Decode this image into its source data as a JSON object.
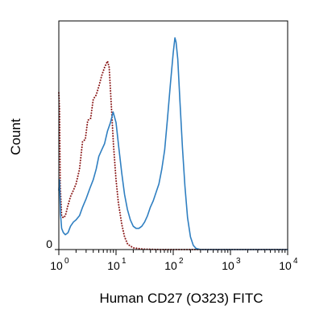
{
  "chart_data": {
    "type": "line",
    "title": "",
    "xlabel": "Human CD27 (O323) FITC",
    "ylabel": "Count",
    "x_scale": "log",
    "xlim": [
      1,
      10000
    ],
    "ylim": [
      0,
      1
    ],
    "grid": false,
    "legend": "none",
    "x_ticks": [
      {
        "value": 1,
        "base": "10",
        "exp": "0"
      },
      {
        "value": 10,
        "base": "10",
        "exp": "1"
      },
      {
        "value": 100,
        "base": "10",
        "exp": "2"
      },
      {
        "value": 1000,
        "base": "10",
        "exp": "3"
      },
      {
        "value": 10000,
        "base": "10",
        "exp": "4"
      }
    ],
    "y_ticks": [
      {
        "value": 0,
        "label": "0"
      }
    ],
    "series": [
      {
        "style": "dotted",
        "color": "#8b1a1a",
        "points": [
          [
            1.0,
            0.74
          ],
          [
            1.03,
            0.66
          ],
          [
            1.06,
            0.3
          ],
          [
            1.12,
            0.16
          ],
          [
            1.2,
            0.15
          ],
          [
            1.3,
            0.16
          ],
          [
            1.45,
            0.21
          ],
          [
            1.6,
            0.25
          ],
          [
            1.8,
            0.28
          ],
          [
            2.0,
            0.31
          ],
          [
            2.3,
            0.38
          ],
          [
            2.6,
            0.51
          ],
          [
            2.9,
            0.52
          ],
          [
            3.2,
            0.61
          ],
          [
            3.6,
            0.62
          ],
          [
            4.0,
            0.71
          ],
          [
            4.5,
            0.73
          ],
          [
            5.0,
            0.77
          ],
          [
            5.6,
            0.82
          ],
          [
            6.3,
            0.86
          ],
          [
            7.1,
            0.89
          ],
          [
            7.6,
            0.86
          ],
          [
            8.2,
            0.7
          ],
          [
            9.0,
            0.5
          ],
          [
            10.0,
            0.33
          ],
          [
            11.0,
            0.22
          ],
          [
            12.6,
            0.12
          ],
          [
            14.1,
            0.06
          ],
          [
            16.0,
            0.025
          ],
          [
            20.0,
            0.008
          ],
          [
            30.0,
            0.002
          ],
          [
            60.0,
            0.0
          ],
          [
            10000.0,
            0.0
          ]
        ]
      },
      {
        "style": "solid",
        "color": "#2f7fc1",
        "points": [
          [
            1.0,
            0.28
          ],
          [
            1.03,
            0.33
          ],
          [
            1.07,
            0.17
          ],
          [
            1.12,
            0.1
          ],
          [
            1.2,
            0.08
          ],
          [
            1.3,
            0.07
          ],
          [
            1.45,
            0.08
          ],
          [
            1.6,
            0.11
          ],
          [
            1.8,
            0.13
          ],
          [
            2.0,
            0.14
          ],
          [
            2.3,
            0.16
          ],
          [
            2.6,
            0.2
          ],
          [
            3.0,
            0.24
          ],
          [
            3.5,
            0.29
          ],
          [
            4.0,
            0.33
          ],
          [
            4.5,
            0.38
          ],
          [
            5.0,
            0.44
          ],
          [
            5.6,
            0.47
          ],
          [
            6.3,
            0.5
          ],
          [
            7.1,
            0.56
          ],
          [
            8.0,
            0.6
          ],
          [
            8.9,
            0.65
          ],
          [
            10.0,
            0.6
          ],
          [
            11.2,
            0.48
          ],
          [
            12.6,
            0.36
          ],
          [
            14.1,
            0.26
          ],
          [
            15.8,
            0.19
          ],
          [
            17.8,
            0.14
          ],
          [
            20.0,
            0.11
          ],
          [
            22.4,
            0.1
          ],
          [
            25.1,
            0.1
          ],
          [
            28.2,
            0.11
          ],
          [
            31.6,
            0.13
          ],
          [
            35.5,
            0.16
          ],
          [
            39.8,
            0.2
          ],
          [
            44.7,
            0.23
          ],
          [
            50.1,
            0.27
          ],
          [
            56.2,
            0.31
          ],
          [
            63.1,
            0.38
          ],
          [
            70.8,
            0.47
          ],
          [
            79.4,
            0.62
          ],
          [
            89.1,
            0.78
          ],
          [
            100.0,
            0.93
          ],
          [
            107.0,
            1.0
          ],
          [
            112.0,
            0.98
          ],
          [
            120.0,
            0.9
          ],
          [
            131.0,
            0.7
          ],
          [
            145.0,
            0.48
          ],
          [
            160.0,
            0.3
          ],
          [
            178.0,
            0.15
          ],
          [
            200.0,
            0.06
          ],
          [
            224.0,
            0.02
          ],
          [
            251.0,
            0.005
          ],
          [
            300.0,
            0.0
          ],
          [
            10000.0,
            0.0
          ]
        ]
      }
    ]
  }
}
